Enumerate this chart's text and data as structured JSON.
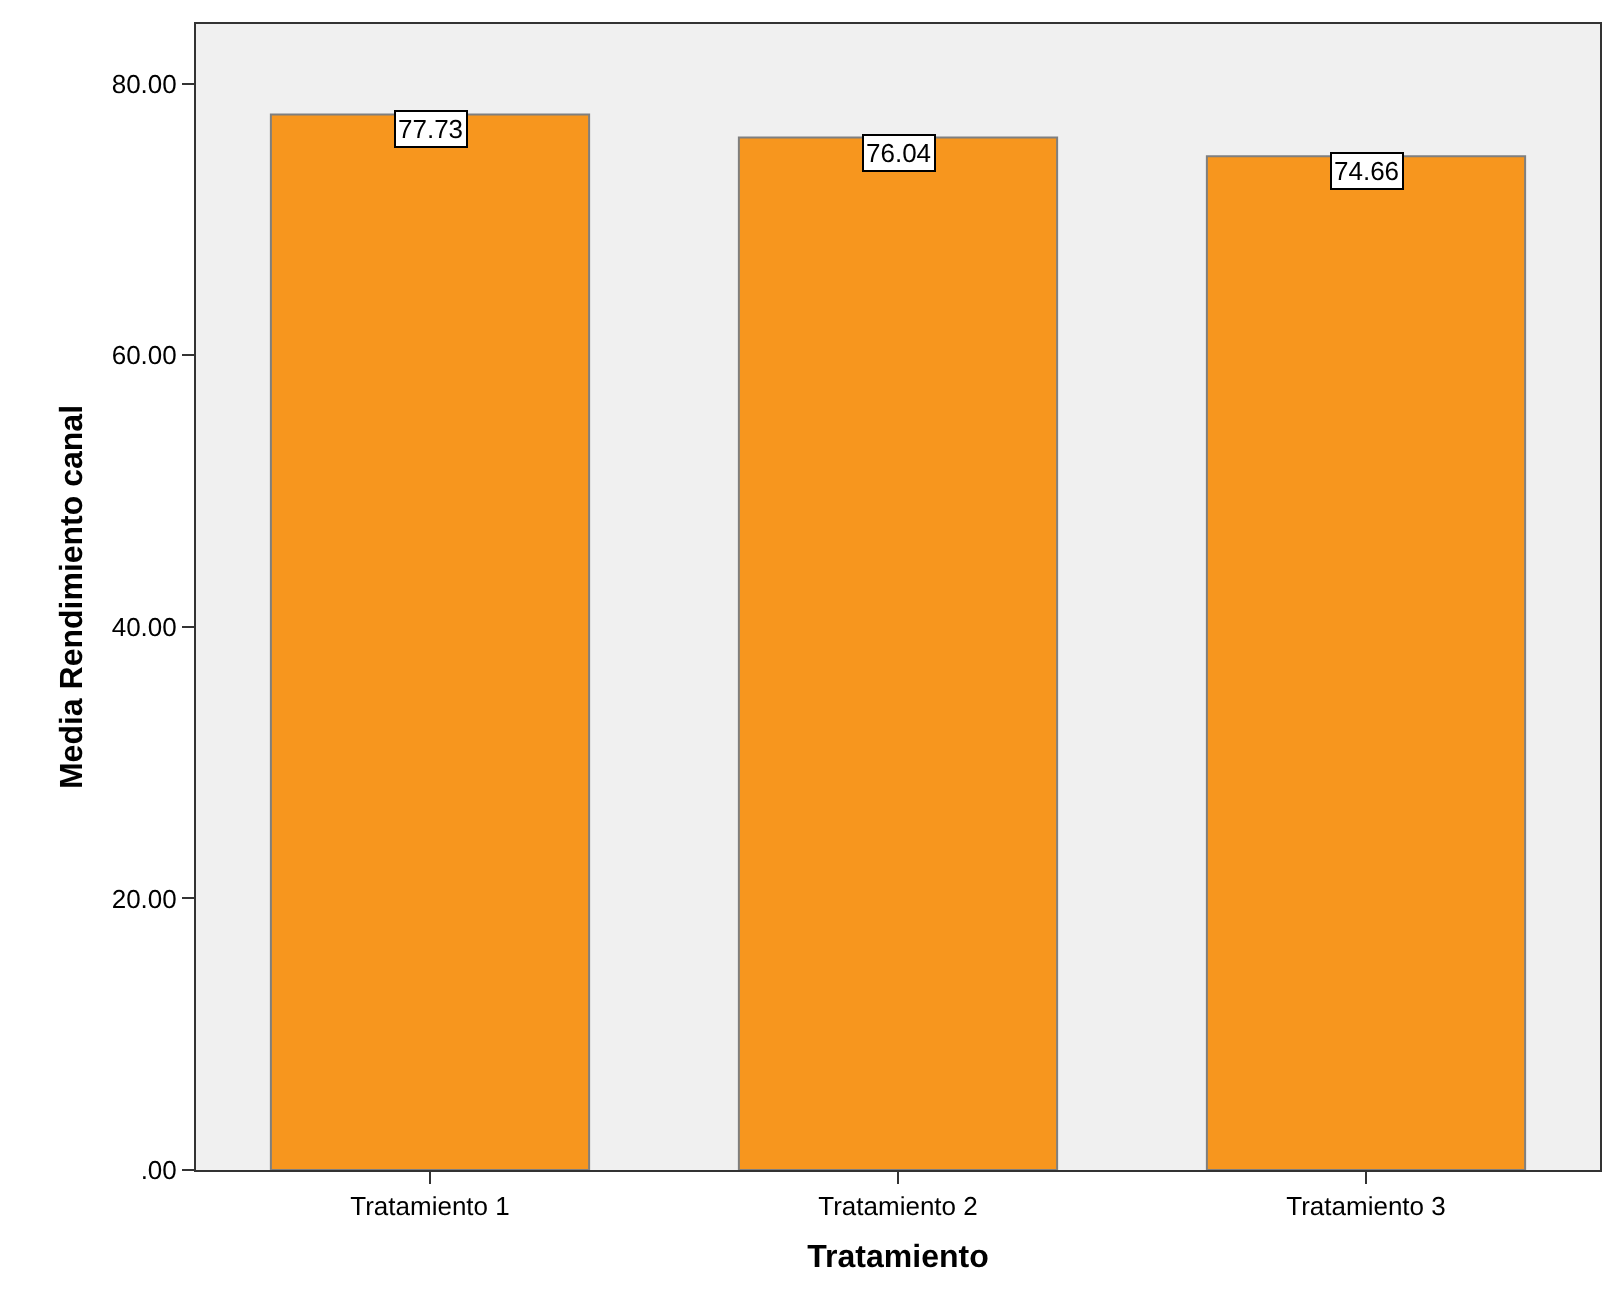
{
  "chart_data": {
    "type": "bar",
    "xlabel": "Tratamiento",
    "ylabel": "Media Rendimiento canal",
    "categories": [
      "Tratamiento 1",
      "Tratamiento 2",
      "Tratamiento 3"
    ],
    "values": [
      77.73,
      76.04,
      74.66
    ],
    "color": "#f7961e",
    "data_labels": true,
    "grid": false,
    "legend": false,
    "ylim": [
      0,
      84.4
    ],
    "yticks": [
      {
        "value": 0,
        "label": ".00"
      },
      {
        "value": 20,
        "label": "20.00"
      },
      {
        "value": 40,
        "label": "40.00"
      },
      {
        "value": 60,
        "label": "60.00"
      },
      {
        "value": 80,
        "label": "80.00"
      }
    ]
  }
}
